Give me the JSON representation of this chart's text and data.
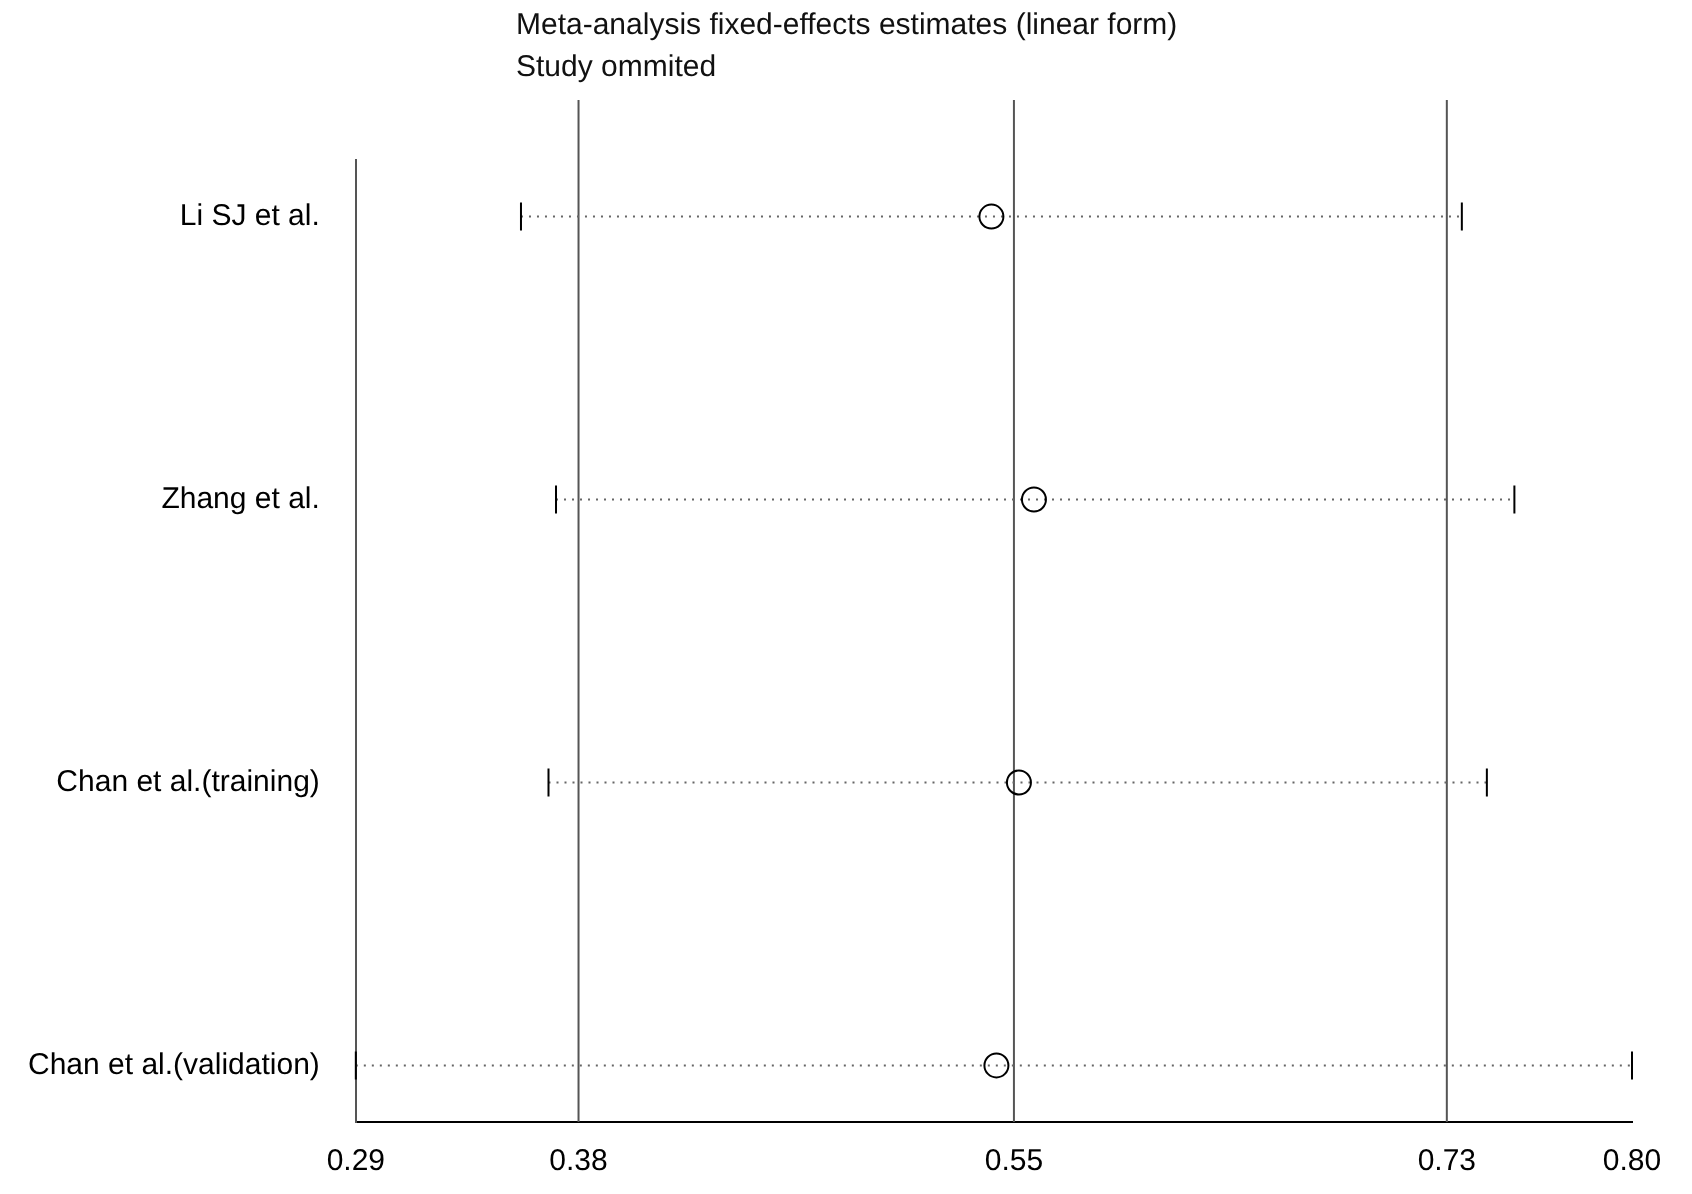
{
  "chart_data": {
    "type": "scatter",
    "orientation": "horizontal",
    "title": "Meta-analysis fixed-effects estimates (linear form)",
    "subtitle": "Study ommited",
    "categories": [
      "Li SJ et al.",
      "Zhang et al.",
      "Chan et al.(training)",
      "Chan et al.(validation)"
    ],
    "series": [
      {
        "color": "#000000",
        "values": [
          0.544,
          0.561,
          0.555,
          0.546
        ],
        "errors": [
          [
            0.356,
            0.732
          ],
          [
            0.37,
            0.753
          ],
          [
            0.367,
            0.742
          ],
          [
            0.29,
            0.8
          ]
        ]
      }
    ],
    "marker": "circle",
    "xlim": [
      0.29,
      0.8
    ],
    "xticks": [
      0.29,
      {
        "value": 0.379,
        "label": "0.38"
      },
      {
        "value": 0.553,
        "label": "0.55"
      },
      {
        "value": 0.726,
        "label": "0.73"
      },
      {
        "value": 0.8,
        "label": "0.80"
      }
    ],
    "ref_lines": [
      {
        "axis": "x",
        "value": 0.379
      },
      {
        "axis": "x",
        "value": 0.553
      },
      {
        "axis": "x",
        "value": 0.726
      }
    ]
  }
}
